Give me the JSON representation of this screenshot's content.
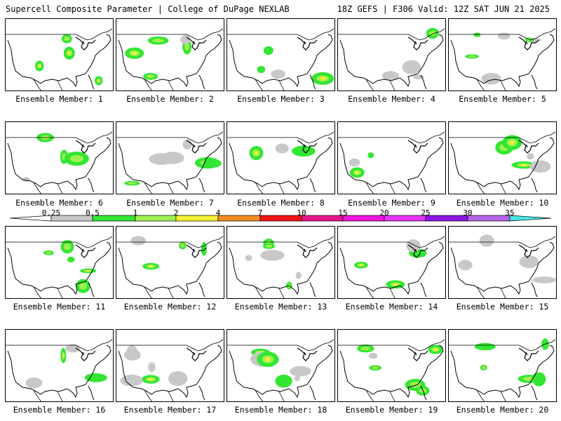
{
  "header": {
    "title_left": "Supercell Composite Parameter | College of DuPage NEXLAB",
    "title_right": "18Z GEFS | F306 Valid: 12Z SAT JUN 21 2025"
  },
  "panel_label_prefix": "Ensemble Member: ",
  "panels": [
    {
      "label": "Ensemble Member: 1",
      "member": 1
    },
    {
      "label": "Ensemble Member: 2",
      "member": 2
    },
    {
      "label": "Ensemble Member: 3",
      "member": 3
    },
    {
      "label": "Ensemble Member: 4",
      "member": 4
    },
    {
      "label": "Ensemble Member: 5",
      "member": 5
    },
    {
      "label": "Ensemble Member: 6",
      "member": 6
    },
    {
      "label": "Ensemble Member: 7",
      "member": 7
    },
    {
      "label": "Ensemble Member: 8",
      "member": 8
    },
    {
      "label": "Ensemble Member: 9",
      "member": 9
    },
    {
      "label": "Ensemble Member: 10",
      "member": 10
    },
    {
      "label": "Ensemble Member: 11",
      "member": 11
    },
    {
      "label": "Ensemble Member: 12",
      "member": 12
    },
    {
      "label": "Ensemble Member: 13",
      "member": 13
    },
    {
      "label": "Ensemble Member: 14",
      "member": 14
    },
    {
      "label": "Ensemble Member: 15",
      "member": 15
    },
    {
      "label": "Ensemble Member: 16",
      "member": 16
    },
    {
      "label": "Ensemble Member: 17",
      "member": 17
    },
    {
      "label": "Ensemble Member: 18",
      "member": 18
    },
    {
      "label": "Ensemble Member: 19",
      "member": 19
    },
    {
      "label": "Ensemble Member: 20",
      "member": 20
    }
  ],
  "colorbar": {
    "ticks": [
      "0.25",
      "0.5",
      "1",
      "2",
      "4",
      "7",
      "10",
      "15",
      "20",
      "25",
      "30",
      "35"
    ],
    "colors": [
      "#c8c8c8",
      "#32e632",
      "#a0f050",
      "#f5f032",
      "#f58c1e",
      "#f01414",
      "#e6148c",
      "#f014dc",
      "#e632f5",
      "#8c14e6",
      "#b464e6",
      "#46e6e6"
    ]
  }
}
